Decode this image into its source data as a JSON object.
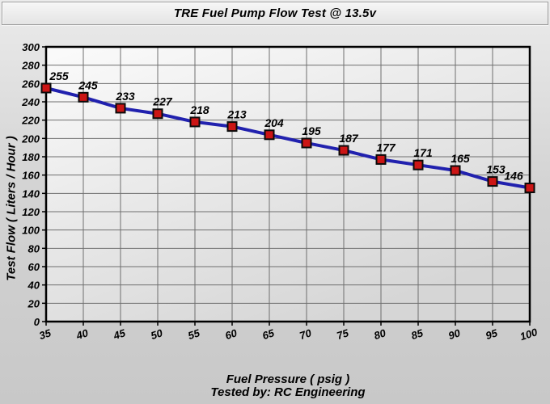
{
  "window": {
    "title": "TRE Fuel Pump Flow Test @ 13.5v"
  },
  "chart_data": {
    "type": "line",
    "title": "TRE Fuel Pump Flow Test @ 13.5v",
    "xlabel": "Fuel Pressure ( psig )",
    "ylabel": "Test Flow ( Liters / Hour )",
    "footer": "Tested by: RC Engineering",
    "series_name": "Test Flow",
    "x": [
      35,
      40,
      45,
      50,
      55,
      60,
      65,
      70,
      75,
      80,
      85,
      90,
      95,
      100
    ],
    "values": [
      255,
      245,
      233,
      227,
      218,
      213,
      204,
      195,
      187,
      177,
      171,
      165,
      153,
      146
    ],
    "xlim": [
      35,
      100
    ],
    "ylim": [
      0,
      300
    ],
    "x_ticks": [
      35,
      40,
      45,
      50,
      55,
      60,
      65,
      70,
      75,
      80,
      85,
      90,
      95,
      100
    ],
    "y_ticks": [
      0,
      20,
      40,
      60,
      80,
      100,
      120,
      140,
      160,
      180,
      200,
      220,
      240,
      260,
      280,
      300
    ],
    "grid": true,
    "legend": "none",
    "marker": "square",
    "colors": {
      "line": "#2121ae",
      "marker_fill": "#cc1515",
      "marker_border": "#0a0a0a",
      "grid": "#6f6f6f",
      "axis": "#000000",
      "plot_bg_top": "#fbfbfb",
      "plot_bg_bottom": "#d6d6d6",
      "text": "#000000"
    }
  }
}
